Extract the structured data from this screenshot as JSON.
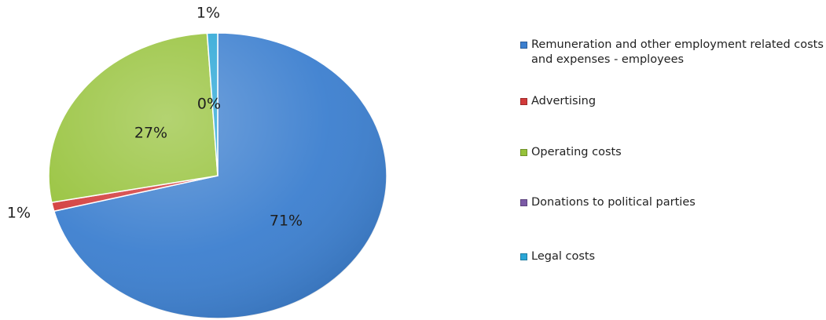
{
  "chart_data": {
    "type": "pie",
    "start_angle_deg": 0,
    "direction": "clockwise",
    "legend_position": "right",
    "slices": [
      {
        "name": "Remuneration and other employment related costs and expenses - employees",
        "value": 71,
        "label": "71%",
        "color": "#3c7fcf"
      },
      {
        "name": "Advertising",
        "value": 1,
        "label": "1%",
        "color": "#d23a3a"
      },
      {
        "name": "Operating costs",
        "value": 27,
        "label": "27%",
        "color": "#96c23a"
      },
      {
        "name": "Donations to political parties",
        "value": 0,
        "label": "0%",
        "color": "#7b5aa6"
      },
      {
        "name": "Legal costs",
        "value": 1,
        "label": "1%",
        "color": "#2aa6d6"
      }
    ]
  }
}
